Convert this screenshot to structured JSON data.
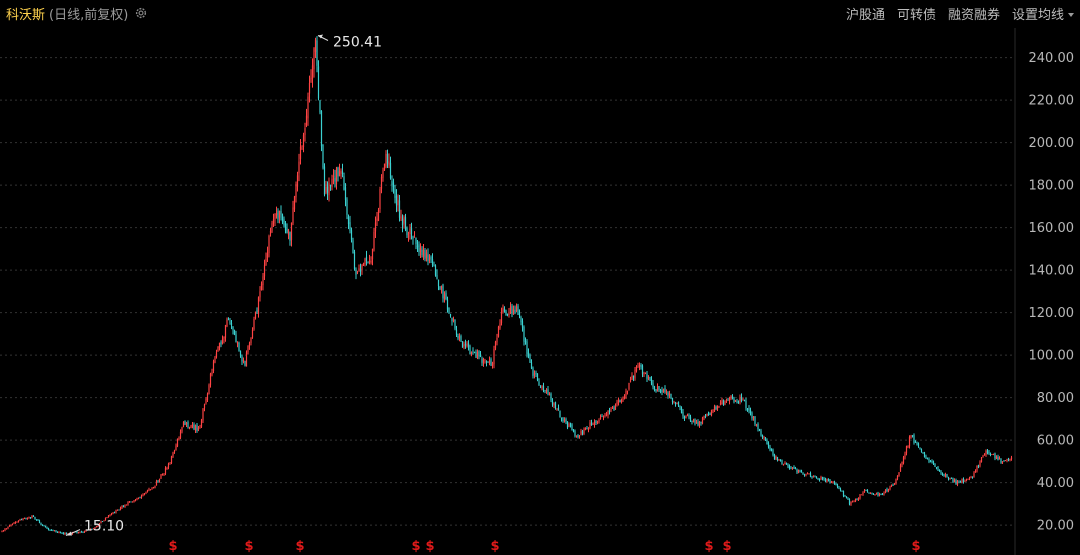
{
  "header": {
    "name": "科沃斯",
    "subtitle": "(日线,前复权)",
    "menu": [
      "沪股通",
      "可转债",
      "融资融券",
      "设置均线"
    ]
  },
  "chart_data": {
    "type": "candlestick",
    "yaxis_ticks": [
      20,
      40,
      60,
      80,
      100,
      120,
      140,
      160,
      180,
      200,
      220,
      240
    ],
    "ylim": [
      13,
      253
    ],
    "grid": true,
    "max_label": "250.41",
    "min_label": "15.10",
    "dividend_marker": "$",
    "approx_close_path": [
      [
        0,
        17
      ],
      [
        0.015,
        22
      ],
      [
        0.03,
        24
      ],
      [
        0.045,
        18
      ],
      [
        0.06,
        16
      ],
      [
        0.075,
        16.5
      ],
      [
        0.09,
        18
      ],
      [
        0.105,
        24
      ],
      [
        0.12,
        29
      ],
      [
        0.135,
        33
      ],
      [
        0.15,
        38
      ],
      [
        0.165,
        48
      ],
      [
        0.18,
        68
      ],
      [
        0.195,
        65
      ],
      [
        0.21,
        97
      ],
      [
        0.225,
        118
      ],
      [
        0.24,
        95
      ],
      [
        0.255,
        128
      ],
      [
        0.27,
        170
      ],
      [
        0.285,
        155
      ],
      [
        0.3,
        210
      ],
      [
        0.31,
        250
      ],
      [
        0.32,
        175
      ],
      [
        0.335,
        190
      ],
      [
        0.35,
        140
      ],
      [
        0.365,
        145
      ],
      [
        0.38,
        195
      ],
      [
        0.395,
        165
      ],
      [
        0.41,
        152
      ],
      [
        0.425,
        145
      ],
      [
        0.44,
        125
      ],
      [
        0.455,
        105
      ],
      [
        0.47,
        100
      ],
      [
        0.485,
        95
      ],
      [
        0.495,
        120
      ],
      [
        0.51,
        122
      ],
      [
        0.525,
        92
      ],
      [
        0.54,
        82
      ],
      [
        0.555,
        70
      ],
      [
        0.57,
        62
      ],
      [
        0.585,
        68
      ],
      [
        0.6,
        72
      ],
      [
        0.615,
        80
      ],
      [
        0.63,
        95
      ],
      [
        0.645,
        85
      ],
      [
        0.66,
        82
      ],
      [
        0.675,
        72
      ],
      [
        0.69,
        68
      ],
      [
        0.705,
        75
      ],
      [
        0.72,
        80
      ],
      [
        0.735,
        78
      ],
      [
        0.75,
        65
      ],
      [
        0.765,
        52
      ],
      [
        0.78,
        47
      ],
      [
        0.795,
        44
      ],
      [
        0.81,
        42
      ],
      [
        0.825,
        40
      ],
      [
        0.84,
        30
      ],
      [
        0.855,
        36
      ],
      [
        0.87,
        34
      ],
      [
        0.885,
        40
      ],
      [
        0.9,
        62
      ],
      [
        0.915,
        52
      ],
      [
        0.93,
        45
      ],
      [
        0.945,
        40
      ],
      [
        0.96,
        42
      ],
      [
        0.975,
        55
      ],
      [
        0.99,
        50
      ],
      [
        1.0,
        52
      ]
    ]
  }
}
